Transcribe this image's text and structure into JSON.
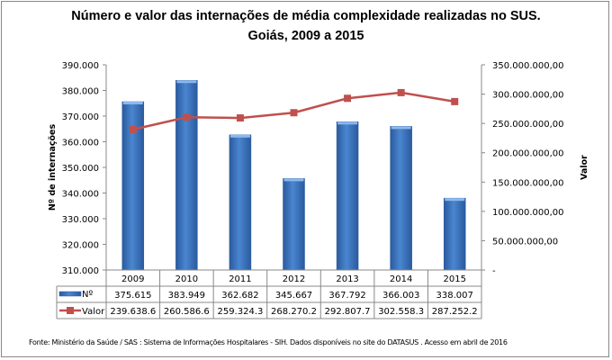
{
  "chart_data": {
    "type": "bar+line",
    "title_line1": "Número e valor das internações de média complexidade realizadas no SUS.",
    "title_line2": "Goiás, 2009 a 2015",
    "categories": [
      "2009",
      "2010",
      "2011",
      "2012",
      "2013",
      "2014",
      "2015"
    ],
    "series": [
      {
        "name": "Nº",
        "type": "bar",
        "axis": "left",
        "color": "#3A73C0",
        "values": [
          375615,
          383949,
          362682,
          345667,
          367792,
          366003,
          338007
        ],
        "labels": [
          "375.615",
          "383.949",
          "362.682",
          "345.667",
          "367.792",
          "366.003",
          "338.007"
        ]
      },
      {
        "name": "Valor",
        "type": "line",
        "axis": "right",
        "color": "#C0504D",
        "values": [
          239638600,
          260586600,
          259324300,
          268270200,
          292807700,
          302558300,
          287252200
        ],
        "labels": [
          "239.638.6",
          "260.586.6",
          "259.324.3",
          "268.270.2",
          "292.807.7",
          "302.558.3",
          "287.252.2"
        ]
      }
    ],
    "ylabel_left": "Nº de internações",
    "ylabel_right": "Valor",
    "ylim_left": [
      310000,
      390000
    ],
    "ylim_right": [
      0,
      350000000
    ],
    "yticks_left": [
      "310.000",
      "320.000",
      "330.000",
      "340.000",
      "350.000",
      "360.000",
      "370.000",
      "380.000",
      "390.000"
    ],
    "yticks_right": [
      "-",
      "50.000.000,00",
      "100.000.000,00",
      "150.000.000,00",
      "200.000.000,00",
      "250.000.000,00",
      "300.000.000,00",
      "350.000.000,00"
    ],
    "grid": false,
    "legend": "data-table"
  },
  "source": "Fonte:  Ministério da Saúde / SAS : Sistema de Informações Hospitalares - SIH. Dados disponíveis no site do DATASUS . Acesso em abril de 2016"
}
